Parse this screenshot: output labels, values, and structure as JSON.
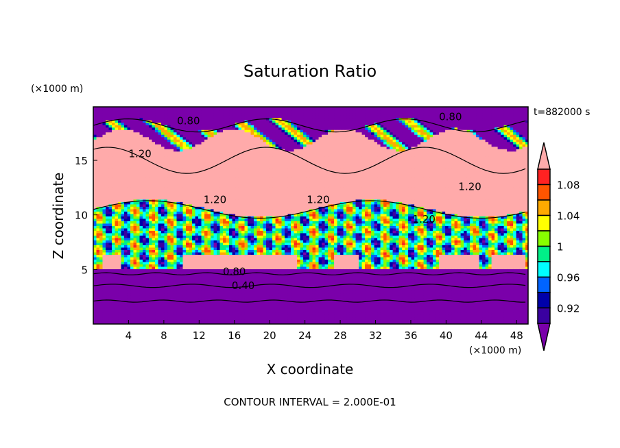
{
  "chart_data": {
    "type": "heatmap",
    "title": "Saturation Ratio",
    "xlabel": "X coordinate",
    "ylabel": "Z coordinate",
    "x_units": "(×1000 m)",
    "y_units": "(×1000 m)",
    "time_label": "t=882000 s",
    "footer": "CONTOUR INTERVAL = 2.000E-01",
    "xlim": [
      0,
      49.3
    ],
    "ylim": [
      0,
      19.9
    ],
    "x_ticks": [
      4,
      8,
      12,
      16,
      20,
      24,
      28,
      32,
      36,
      40,
      44,
      48
    ],
    "y_ticks": [
      5,
      10,
      15
    ],
    "contour_labels": [
      {
        "text": "0.80",
        "x": 10.8,
        "z": 18.6
      },
      {
        "text": "0.80",
        "x": 40.5,
        "z": 19.0
      },
      {
        "text": "1.20",
        "x": 5.3,
        "z": 15.6
      },
      {
        "text": "1.20",
        "x": 13.8,
        "z": 11.4
      },
      {
        "text": "1.20",
        "x": 25.5,
        "z": 11.4
      },
      {
        "text": "1.20",
        "x": 42.7,
        "z": 12.6
      },
      {
        "text": "1.20",
        "x": 37.5,
        "z": 9.6
      },
      {
        "text": "0.80",
        "x": 16.0,
        "z": 4.8
      },
      {
        "text": "0.40",
        "x": 17.0,
        "z": 3.5
      }
    ],
    "colorbar": {
      "tick_labels": [
        "1.08",
        "1.04",
        "1",
        "0.96",
        "0.92"
      ],
      "levels": [
        0.9,
        0.92,
        0.94,
        0.96,
        0.98,
        1.0,
        1.02,
        1.04,
        1.06,
        1.08,
        1.1
      ],
      "colors": [
        "#3a00a0",
        "#0000aa",
        "#0064ff",
        "#00ffff",
        "#00f088",
        "#88ff00",
        "#ffff00",
        "#ffaa00",
        "#ff5500",
        "#ff2222"
      ],
      "under_color": "#7a00aa",
      "over_color": "#ffaaaa"
    }
  }
}
